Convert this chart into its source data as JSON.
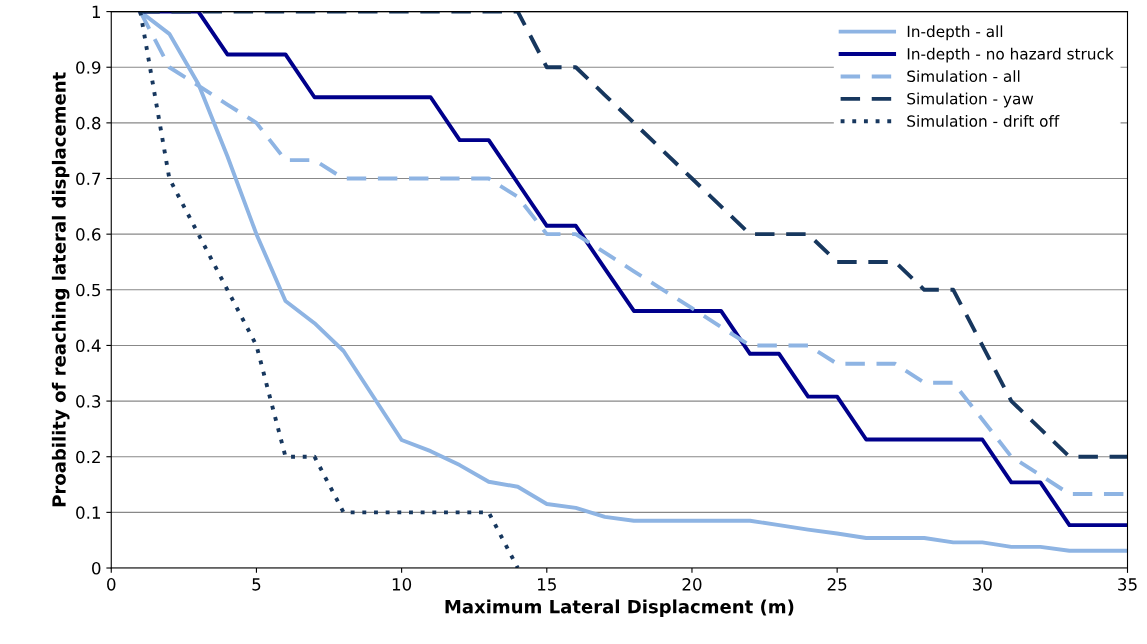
{
  "chart_data": {
    "type": "line",
    "xlabel": "Maximum Lateral Displacment (m)",
    "ylabel": "Proability of reaching lateral displacement",
    "x": [
      1,
      2,
      3,
      4,
      5,
      6,
      7,
      8,
      9,
      10,
      11,
      12,
      13,
      14,
      15,
      16,
      17,
      18,
      19,
      20,
      21,
      22,
      23,
      24,
      25,
      26,
      27,
      28,
      29,
      30,
      31,
      32,
      33,
      34,
      35
    ],
    "xlim": [
      0,
      35
    ],
    "xticks": [
      0,
      5,
      10,
      15,
      20,
      25,
      30,
      35
    ],
    "ylim": [
      0,
      1
    ],
    "yticks": [
      0,
      0.1,
      0.2,
      0.3,
      0.4,
      0.5,
      0.6,
      0.7,
      0.8,
      0.9,
      1
    ],
    "grid": "y",
    "legend": "top right",
    "marker": "none",
    "series": [
      {
        "name": "In-depth - all",
        "color": "#8eb4e3",
        "line_style": "solid",
        "values": [
          1,
          0.96,
          0.87,
          0.74,
          0.6,
          0.48,
          0.44,
          0.39,
          0.31,
          0.23,
          0.21,
          0.185,
          0.155,
          0.146,
          0.115,
          0.108,
          0.092,
          0.085,
          0.085,
          0.085,
          0.085,
          0.085,
          0.077,
          0.069,
          0.062,
          0.054,
          0.054,
          0.054,
          0.046,
          0.046,
          0.038,
          0.038,
          0.031,
          0.031,
          0.031
        ]
      },
      {
        "name": "In-depth - no hazard struck",
        "color": "#00008b",
        "line_style": "solid",
        "values": [
          1,
          1,
          1,
          0.923,
          0.923,
          0.923,
          0.846,
          0.846,
          0.846,
          0.846,
          0.846,
          0.769,
          0.769,
          0.692,
          0.615,
          0.615,
          0.538,
          0.462,
          0.462,
          0.462,
          0.462,
          0.385,
          0.385,
          0.308,
          0.308,
          0.231,
          0.231,
          0.231,
          0.231,
          0.231,
          0.154,
          0.154,
          0.077,
          0.077,
          0.077
        ]
      },
      {
        "name": "Simulation - all",
        "color": "#8eb4e3",
        "line_style": "dashed",
        "values": [
          1,
          0.9,
          0.867,
          0.833,
          0.8,
          0.733,
          0.733,
          0.7,
          0.7,
          0.7,
          0.7,
          0.7,
          0.7,
          0.667,
          0.6,
          0.6,
          0.567,
          0.533,
          0.5,
          0.467,
          0.433,
          0.4,
          0.4,
          0.4,
          0.367,
          0.367,
          0.367,
          0.333,
          0.333,
          0.267,
          0.2,
          0.167,
          0.133,
          0.133,
          0.133
        ]
      },
      {
        "name": "Simulation - yaw",
        "color": "#17375e",
        "line_style": "dashed",
        "values": [
          1,
          1,
          1,
          1,
          1,
          1,
          1,
          1,
          1,
          1,
          1,
          1,
          1,
          1,
          0.9,
          0.9,
          0.85,
          0.8,
          0.75,
          0.7,
          0.65,
          0.6,
          0.6,
          0.6,
          0.55,
          0.55,
          0.55,
          0.5,
          0.5,
          0.4,
          0.3,
          0.25,
          0.2,
          0.2,
          0.2
        ]
      },
      {
        "name": "Simulation - drift off",
        "color": "#17375e",
        "line_style": "dotted",
        "values": [
          1,
          0.7,
          0.6,
          0.5,
          0.4,
          0.2,
          0.2,
          0.1,
          0.1,
          0.1,
          0.1,
          0.1,
          0.1,
          0,
          null,
          null,
          null,
          null,
          null,
          null,
          null,
          null,
          null,
          null,
          null,
          null,
          null,
          null,
          null,
          null,
          null,
          null,
          null,
          null,
          null
        ]
      }
    ]
  }
}
